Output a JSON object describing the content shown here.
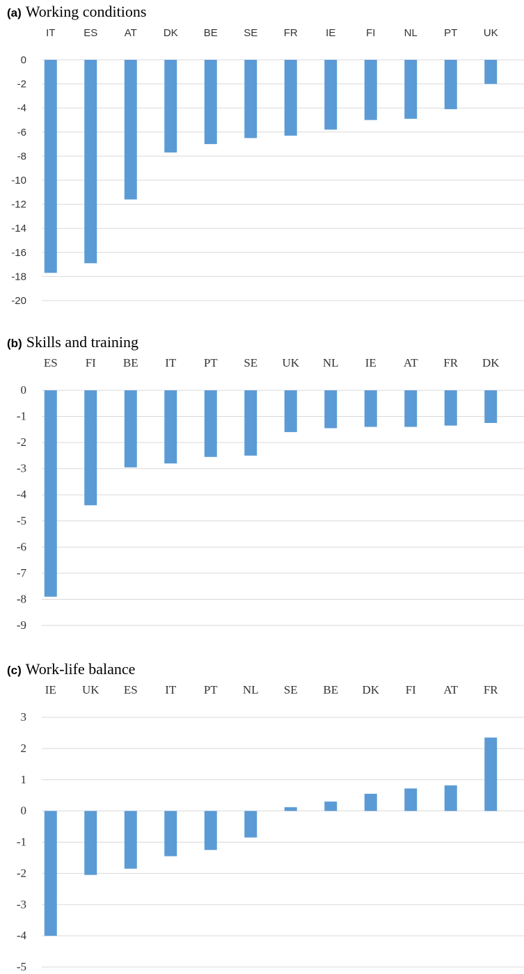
{
  "chart_data": [
    {
      "type": "bar",
      "letter": "(a)",
      "title": "Working conditions",
      "categories": [
        "IT",
        "ES",
        "AT",
        "DK",
        "BE",
        "SE",
        "FR",
        "IE",
        "FI",
        "NL",
        "PT",
        "UK"
      ],
      "values": [
        -17.7,
        -16.9,
        -11.6,
        -7.7,
        -7.0,
        -6.5,
        -6.3,
        -5.8,
        -5.0,
        -4.9,
        -4.1,
        -2.0
      ],
      "yticks": [
        0,
        -2,
        -4,
        -6,
        -8,
        -10,
        -12,
        -14,
        -16,
        -18,
        -20
      ],
      "ylim": [
        -20,
        0
      ],
      "grid": true,
      "color": "#5B9BD5"
    },
    {
      "type": "bar",
      "letter": "(b)",
      "title": "Skills and training",
      "categories": [
        "ES",
        "FI",
        "BE",
        "IT",
        "PT",
        "SE",
        "UK",
        "NL",
        "IE",
        "AT",
        "FR",
        "DK"
      ],
      "values": [
        -7.9,
        -4.4,
        -2.95,
        -2.8,
        -2.55,
        -2.5,
        -1.6,
        -1.45,
        -1.4,
        -1.4,
        -1.35,
        -1.25
      ],
      "yticks": [
        0,
        -1,
        -2,
        -3,
        -4,
        -5,
        -6,
        -7,
        -8,
        -9
      ],
      "ylim": [
        -9,
        0
      ],
      "grid": true,
      "color": "#5B9BD5"
    },
    {
      "type": "bar",
      "letter": "(c)",
      "title": "Work-life balance",
      "categories": [
        "IE",
        "UK",
        "ES",
        "IT",
        "PT",
        "NL",
        "SE",
        "BE",
        "DK",
        "FI",
        "AT",
        "FR"
      ],
      "values": [
        -4.0,
        -2.05,
        -1.85,
        -1.45,
        -1.25,
        -0.85,
        0.12,
        0.3,
        0.55,
        0.72,
        0.82,
        2.35
      ],
      "yticks": [
        3,
        2,
        1,
        0,
        -1,
        -2,
        -3,
        -4,
        -5
      ],
      "ylim": [
        -5,
        3
      ],
      "grid": true,
      "color": "#5B9BD5"
    }
  ]
}
